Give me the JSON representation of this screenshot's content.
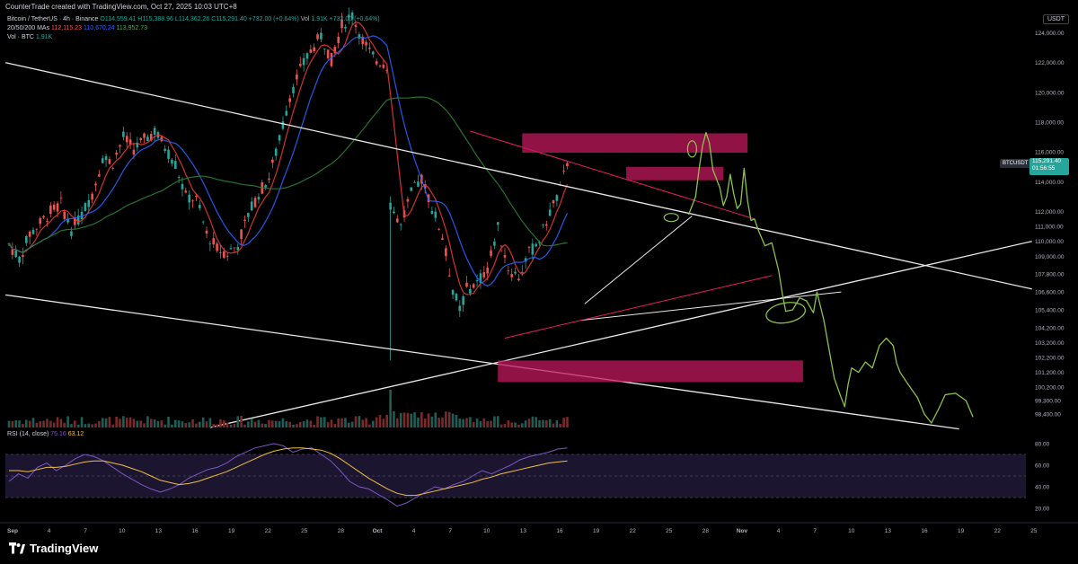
{
  "credit": "CounterTrade created with TradingView.com, Oct 27, 2025 10:03 UTC+8",
  "legend": {
    "symbol": "Bitcoin / TetherUS · 4h · Binance",
    "open": "O114,559.41",
    "high": "H115,388.96",
    "low": "L114,362.26",
    "close": "C115,291.40",
    "change": "+732.00 (+0.64%)",
    "volume": "1.91K",
    "change2": "+732.00 (+0.64%)",
    "ma_label": "20/50/200 MAs",
    "ma20": "112,115.23",
    "ma50": "110,670.24",
    "ma200": "113,952.73",
    "vol_label": "Vol · BTC",
    "vol_value": "1.91K"
  },
  "currency": "USDT",
  "price_tag": {
    "symbol": "BTCUSDT",
    "price": "115,291.40",
    "countdown": "01:56:55"
  },
  "rsi_legend": {
    "label": "RSI (14, close)",
    "rsi": "75.16",
    "ma": "63.12"
  },
  "brand": "TradingView",
  "colors": {
    "bull": "#26a69a",
    "bear": "#ef5350",
    "ma20": "#e53935",
    "ma50": "#2962ff",
    "ma200": "#2e7d32",
    "zone": "#c2185b",
    "scribble": "#8bc34a",
    "rsi": "#7e57c2",
    "rsi_ma": "#f0c040"
  },
  "chart_data": {
    "type": "candlestick",
    "timeframe": "4h",
    "y_axis": {
      "ticks": [
        "124,000.00",
        "122,000.00",
        "120,000.00",
        "118,000.00",
        "116,000.00",
        "114,000.00",
        "112,000.00",
        "111,000.00",
        "110,000.00",
        "109,000.00",
        "107,800.00",
        "106,600.00",
        "105,400.00",
        "104,200.00",
        "103,200.00",
        "102,200.00",
        "101,200.00",
        "100,200.00",
        "99,300.00",
        "98,400.00"
      ],
      "range": [
        97500,
        125600
      ]
    },
    "x_axis": {
      "ticks": [
        "Sep",
        "4",
        "7",
        "10",
        "13",
        "16",
        "19",
        "22",
        "25",
        "28",
        "Oct",
        "4",
        "7",
        "10",
        "13",
        "16",
        "19",
        "22",
        "25",
        "28",
        "Nov",
        "4",
        "7",
        "10",
        "13",
        "16",
        "19",
        "22",
        "25"
      ]
    },
    "price_path": [
      [
        0,
        109800
      ],
      [
        3,
        108800
      ],
      [
        6,
        110500
      ],
      [
        9,
        111200
      ],
      [
        12,
        112000
      ],
      [
        15,
        112500
      ],
      [
        18,
        110800
      ],
      [
        21,
        111800
      ],
      [
        24,
        113200
      ],
      [
        27,
        115600
      ],
      [
        30,
        115300
      ],
      [
        33,
        117000
      ],
      [
        36,
        116200
      ],
      [
        39,
        116800
      ],
      [
        42,
        117400
      ],
      [
        45,
        116300
      ],
      [
        48,
        115200
      ],
      [
        51,
        113000
      ],
      [
        54,
        112800
      ],
      [
        57,
        110500
      ],
      [
        60,
        109500
      ],
      [
        63,
        109200
      ],
      [
        66,
        109800
      ],
      [
        69,
        111800
      ],
      [
        72,
        113200
      ],
      [
        75,
        114300
      ],
      [
        78,
        116800
      ],
      [
        81,
        119800
      ],
      [
        84,
        121500
      ],
      [
        87,
        122800
      ],
      [
        90,
        123800
      ],
      [
        93,
        122200
      ],
      [
        96,
        124500
      ],
      [
        99,
        125200
      ],
      [
        102,
        123500
      ],
      [
        105,
        122300
      ],
      [
        108,
        122000
      ],
      [
        109,
        121800
      ],
      [
        110,
        112500
      ],
      [
        113,
        111000
      ],
      [
        116,
        113200
      ],
      [
        119,
        114200
      ],
      [
        122,
        112300
      ],
      [
        125,
        110300
      ],
      [
        128,
        106800
      ],
      [
        130,
        105400
      ],
      [
        132,
        106800
      ],
      [
        135,
        107200
      ],
      [
        138,
        108200
      ],
      [
        141,
        110900
      ],
      [
        144,
        108200
      ],
      [
        147,
        107600
      ],
      [
        150,
        109200
      ],
      [
        153,
        110100
      ],
      [
        156,
        112000
      ],
      [
        159,
        113400
      ],
      [
        161,
        115291
      ]
    ],
    "rsi": {
      "ticks": [
        "80.00",
        "60.00",
        "40.00",
        "20.00"
      ],
      "range": [
        15,
        85
      ],
      "values": [
        45,
        52,
        48,
        58,
        62,
        55,
        60,
        66,
        70,
        68,
        64,
        58,
        52,
        47,
        42,
        38,
        35,
        38,
        42,
        48,
        52,
        56,
        58,
        62,
        68,
        72,
        76,
        78,
        80,
        78,
        72,
        75,
        76,
        70,
        64,
        55,
        45,
        40,
        38,
        33,
        28,
        22,
        25,
        30,
        35,
        40,
        38,
        42,
        45,
        50,
        55,
        52,
        56,
        60,
        65,
        68,
        70,
        72,
        75,
        76
      ],
      "ma": [
        55,
        55,
        54,
        56,
        58,
        58,
        59,
        61,
        63,
        64,
        64,
        62,
        60,
        57,
        54,
        50,
        46,
        44,
        42,
        43,
        45,
        48,
        51,
        54,
        58,
        62,
        66,
        70,
        73,
        75,
        76,
        76,
        75,
        74,
        71,
        66,
        60,
        54,
        48,
        43,
        38,
        34,
        32,
        32,
        34,
        36,
        38,
        40,
        42,
        44,
        47,
        49,
        52,
        54,
        56,
        58,
        60,
        62,
        63,
        64
      ]
    }
  }
}
